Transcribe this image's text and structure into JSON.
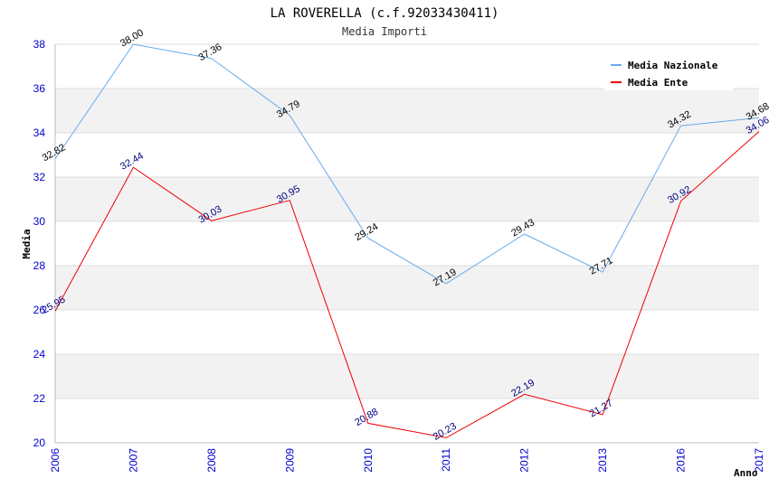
{
  "chart_data": {
    "type": "line",
    "title": "LA ROVERELLA (c.f.92033430411)",
    "subtitle": "Media Importi",
    "xlabel": "Anno",
    "ylabel": "Media",
    "ylim": [
      20,
      38
    ],
    "yticks": [
      "20",
      "22",
      "24",
      "26",
      "28",
      "30",
      "32",
      "34",
      "36",
      "38"
    ],
    "categories": [
      "2006",
      "2007",
      "2008",
      "2009",
      "2010",
      "2011",
      "2012",
      "2013",
      "2016",
      "2017"
    ],
    "series": [
      {
        "name": "Media Nazionale",
        "color": "#66aaee",
        "label_color": "#000000",
        "values": [
          32.82,
          38.0,
          37.36,
          34.79,
          29.24,
          27.19,
          29.43,
          27.71,
          34.32,
          34.68
        ],
        "labels": [
          "32.82",
          "38.00",
          "37.36",
          "34.79",
          "29.24",
          "27.19",
          "29.43",
          "27.71",
          "34.32",
          "34.68"
        ]
      },
      {
        "name": "Media Ente",
        "color": "#ee0000",
        "label_color": "#000080",
        "values": [
          25.95,
          32.44,
          30.03,
          30.95,
          20.88,
          20.23,
          22.19,
          21.27,
          30.92,
          34.06
        ],
        "labels": [
          "25.95",
          "32.44",
          "30.03",
          "30.95",
          "20.88",
          "20.23",
          "22.19",
          "21.27",
          "30.92",
          "34.06"
        ]
      }
    ],
    "grid": true,
    "legend": "top-right"
  }
}
